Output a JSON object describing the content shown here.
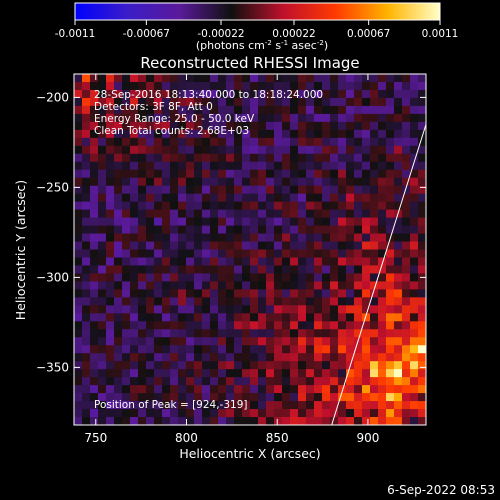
{
  "colorbar": {
    "ticks": [
      "-0.0011",
      "-0.00067",
      "-0.00022",
      "0.00022",
      "0.00067",
      "0.0011"
    ],
    "tick_values": [
      -0.0011,
      -0.00067,
      -0.00022,
      0.00022,
      0.00067,
      0.0011
    ],
    "units_main": "(photons cm",
    "units_sup1": "-2",
    "units_mid": " s",
    "units_sup2": "-1",
    "units_mid2": " asec",
    "units_sup3": "-2",
    "units_end": ")",
    "colors": [
      "#0000ff",
      "#3a1cc8",
      "#5a1a9a",
      "#101010",
      "#c0102c",
      "#ff3a00",
      "#ffb400",
      "#ffffc8"
    ]
  },
  "annotations": {
    "time_range": "28-Sep-2016 18:13:40.000 to 18:18:24.000",
    "detectors": "Detectors: 3F 8F, Att 0",
    "energy": "Energy Range: 25.0 - 50.0 keV",
    "method": "Clean    Total counts: 2.68E+03",
    "peak": "Position of Peak = [924,-319]"
  },
  "footer_timestamp": "6-Sep-2022 08:53",
  "chart_data": {
    "type": "heatmap",
    "title": "Reconstructed RHESSI Image",
    "xlabel": "Heliocentric X (arcsec)",
    "ylabel": "Heliocentric Y (arcsec)",
    "xlim": [
      738,
      932
    ],
    "ylim": [
      -382,
      -187
    ],
    "xticks": [
      750,
      800,
      850,
      900
    ],
    "xtick_labels": [
      "750",
      "800",
      "850",
      "900"
    ],
    "yticks": [
      -200,
      -250,
      -300,
      -350
    ],
    "ytick_labels": [
      "−200",
      "−250",
      "−300",
      "−350"
    ],
    "color_range": [
      -0.0011,
      0.0011
    ],
    "grid": false,
    "limb_line": [
      [
        880,
        -382
      ],
      [
        932,
        -215
      ]
    ],
    "peak": [
      924,
      -319
    ]
  }
}
